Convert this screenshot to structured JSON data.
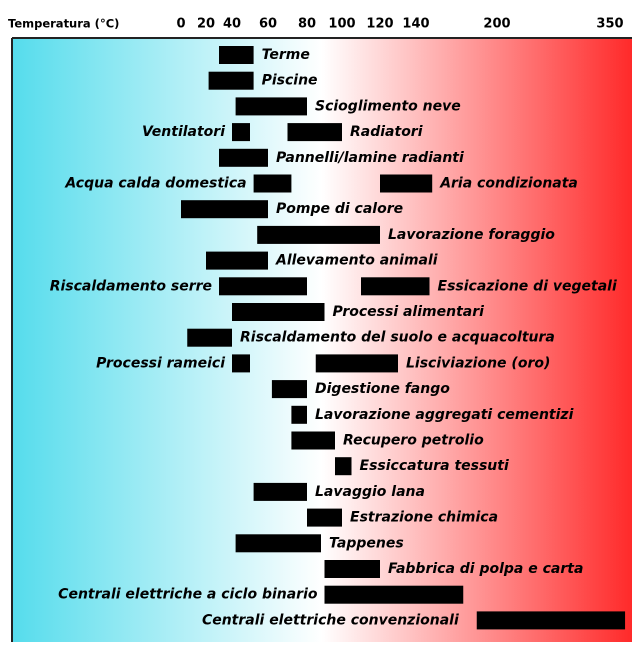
{
  "chart_data": {
    "type": "range_bar",
    "xlabel": "Temperatura (°C)",
    "xlim": [
      0,
      370
    ],
    "xticks": [
      0,
      20,
      40,
      60,
      80,
      100,
      120,
      140,
      200,
      350
    ],
    "color": "#000000",
    "categories": [
      "Terme",
      "Piscine",
      "Scioglimento neve",
      "Ventilatori",
      "Radiatori",
      "Pannelli/lamine radianti",
      "Acqua calda domestica",
      "Aria condizionata",
      "Pompe di calore",
      "Lavorazione foraggio",
      "Allevamento animali",
      "Riscaldamento serre",
      "Essicazione di vegetali",
      "Processi alimentari",
      "Riscaldamento del suolo e acquacoltura",
      "Processi rameici",
      "Lisciviazione (oro)",
      "Digestione fango",
      "Lavorazione aggregati cementizi",
      "Recupero petrolio",
      "Essiccatura tessuti",
      "Lavaggio lana",
      "Estrazione chimica",
      "Tappenes",
      "Fabbrica di polpa e carta",
      "Centrali elettriche a ciclo binario",
      "Centrali elettriche convenzionali"
    ],
    "starts": [
      30,
      22,
      42,
      40,
      70,
      30,
      52,
      120,
      0,
      54,
      20,
      30,
      110,
      40,
      5,
      40,
      85,
      62,
      72,
      72,
      96,
      52,
      80,
      42,
      90,
      90,
      185
    ],
    "ends": [
      52,
      52,
      80,
      50,
      100,
      60,
      72,
      152,
      60,
      120,
      60,
      80,
      150,
      90,
      40,
      50,
      130,
      80,
      80,
      96,
      105,
      80,
      100,
      88,
      120,
      175,
      370
    ]
  }
}
